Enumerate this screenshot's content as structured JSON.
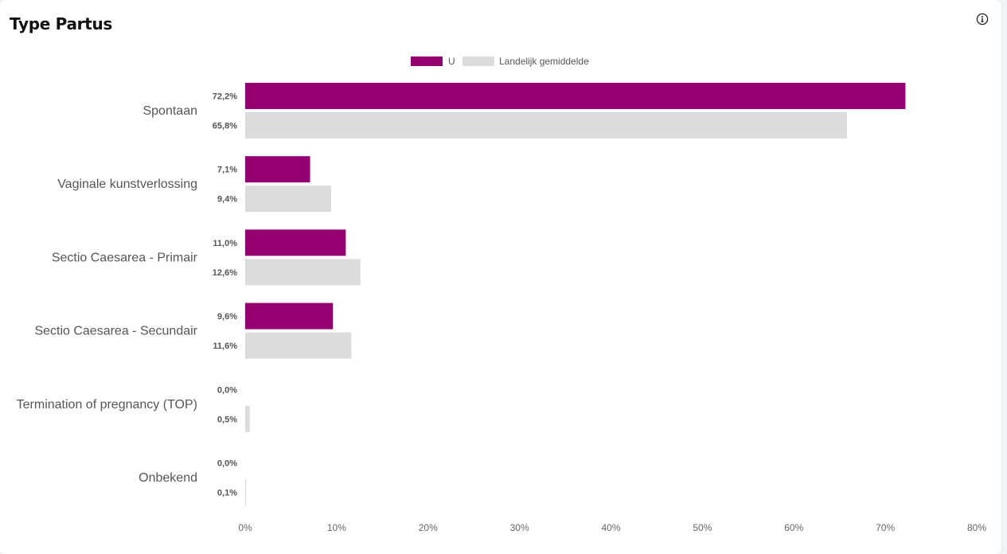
{
  "header": {
    "title": "Type Partus",
    "info_icon": "info-icon"
  },
  "chart_data": {
    "type": "bar",
    "orientation": "horizontal",
    "categories": [
      "Spontaan",
      "Vaginale kunstverlossing",
      "Sectio Caesarea - Primair",
      "Sectio Caesarea - Secundair",
      "Termination of pregnancy (TOP)",
      "Onbekend"
    ],
    "series": [
      {
        "name": "U",
        "color": "#940070",
        "values": [
          72.2,
          7.1,
          11.0,
          9.6,
          0.0,
          0.0
        ],
        "labels": [
          "72,2%",
          "7,1%",
          "11,0%",
          "9,6%",
          "0,0%",
          "0,0%"
        ]
      },
      {
        "name": "Landelijk gemiddelde",
        "color": "#dcdcdc",
        "values": [
          65.8,
          9.4,
          12.6,
          11.6,
          0.5,
          0.1
        ],
        "labels": [
          "65,8%",
          "9,4%",
          "12,6%",
          "11,6%",
          "0,5%",
          "0,1%"
        ]
      }
    ],
    "xlim": [
      0,
      80
    ],
    "x_ticks": [
      "0%",
      "10%",
      "20%",
      "30%",
      "40%",
      "50%",
      "60%",
      "70%",
      "80%"
    ],
    "legend_position": "top-center",
    "grid": false
  }
}
